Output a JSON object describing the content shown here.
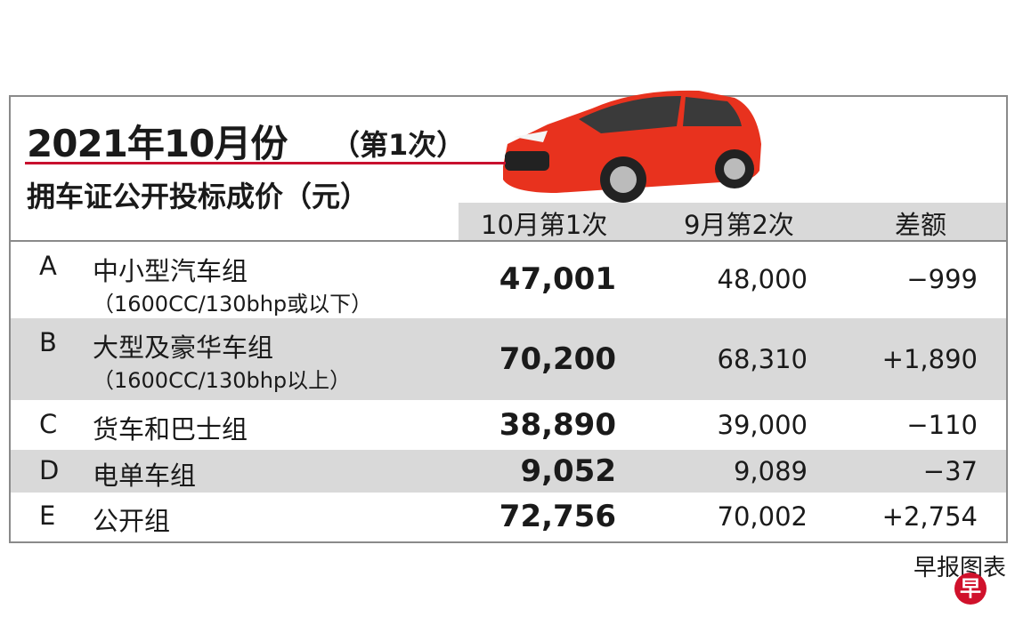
{
  "header": {
    "title": "2021年10月份",
    "title_note": "（第1次）",
    "subtitle": "拥车证公开投标成价（元）"
  },
  "table": {
    "columns": [
      "10月第1次",
      "9月第2次",
      "差额"
    ],
    "rows": [
      {
        "code": "A",
        "name": "中小型汽车组",
        "note": "（1600CC/130bhp或以下）",
        "current": "47,001",
        "previous": "48,000",
        "change": "−999"
      },
      {
        "code": "B",
        "name": "大型及豪华车组",
        "note": "（1600CC/130bhp以上）",
        "current": "70,200",
        "previous": "68,310",
        "change": "+1,890"
      },
      {
        "code": "C",
        "name": "货车和巴士组",
        "current": "38,890",
        "previous": "39,000",
        "change": "−110"
      },
      {
        "code": "D",
        "name": "电单车组",
        "current": "9,052",
        "previous": "9,089",
        "change": "−37"
      },
      {
        "code": "E",
        "name": "公开组",
        "current": "72,756",
        "previous": "70,002",
        "change": "+2,754"
      }
    ]
  },
  "footer": {
    "credit": "早报图表",
    "logo": "早"
  }
}
